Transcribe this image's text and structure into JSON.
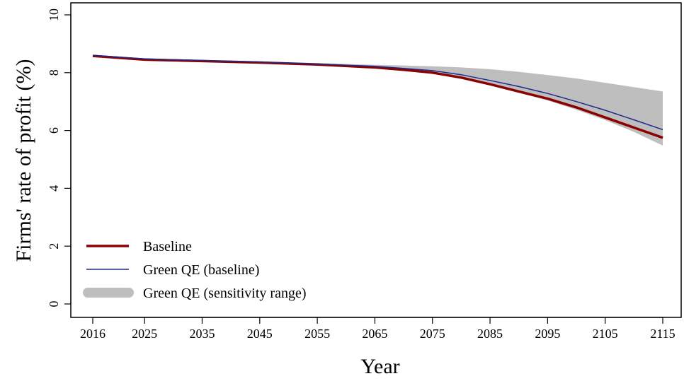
{
  "chart_data": {
    "type": "line",
    "title": "",
    "xlabel": "Year",
    "ylabel": "Firms' rate of profit (%)",
    "xlim": [
      2016,
      2115
    ],
    "ylim": [
      0,
      10
    ],
    "x_ticks": [
      "2016",
      "2025",
      "2035",
      "2045",
      "2055",
      "2065",
      "2075",
      "2085",
      "2095",
      "2105",
      "2115"
    ],
    "y_ticks": [
      "0",
      "2",
      "4",
      "6",
      "8",
      "10"
    ],
    "grid": false,
    "legend_position": "bottom-left",
    "x": [
      2016,
      2025,
      2035,
      2045,
      2055,
      2065,
      2070,
      2075,
      2080,
      2085,
      2090,
      2095,
      2100,
      2105,
      2110,
      2115
    ],
    "series": [
      {
        "name": "Baseline",
        "color": "#8b0000",
        "values": [
          8.58,
          8.45,
          8.4,
          8.35,
          8.28,
          8.18,
          8.1,
          8.0,
          7.83,
          7.6,
          7.35,
          7.1,
          6.8,
          6.45,
          6.1,
          5.75
        ]
      },
      {
        "name": "Green QE (baseline)",
        "color": "#1f2a8c",
        "values": [
          8.6,
          8.48,
          8.42,
          8.37,
          8.3,
          8.22,
          8.15,
          8.07,
          7.93,
          7.73,
          7.52,
          7.28,
          7.0,
          6.7,
          6.37,
          6.03
        ]
      }
    ],
    "band": {
      "name": "Green QE (sensitivity range)",
      "color": "#bebebe",
      "lower": [
        8.57,
        8.45,
        8.39,
        8.34,
        8.27,
        8.17,
        8.09,
        7.98,
        7.8,
        7.56,
        7.3,
        7.04,
        6.72,
        6.36,
        5.95,
        5.48
      ],
      "upper": [
        8.62,
        8.5,
        8.44,
        8.39,
        8.33,
        8.27,
        8.25,
        8.22,
        8.18,
        8.12,
        8.03,
        7.92,
        7.8,
        7.65,
        7.5,
        7.35
      ]
    }
  }
}
